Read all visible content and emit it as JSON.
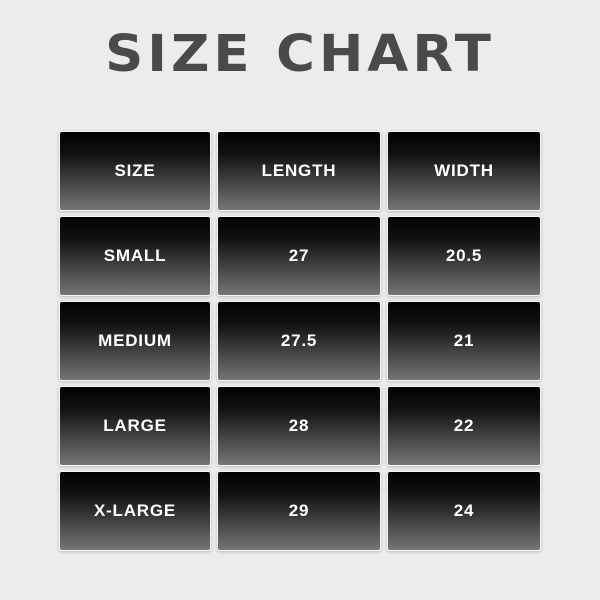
{
  "chart_data": {
    "type": "table",
    "title": "SIZE CHART",
    "columns": [
      "SIZE",
      "LENGTH",
      "WIDTH"
    ],
    "rows": [
      [
        "SMALL",
        "27",
        "20.5"
      ],
      [
        "MEDIUM",
        "27.5",
        "21"
      ],
      [
        "LARGE",
        "28",
        "22"
      ],
      [
        "X-LARGE",
        "29",
        "24"
      ]
    ]
  },
  "colors": {
    "page_background": "#ebedec",
    "title_text": "#4a4a4c",
    "cell_gradient_top": "#020202",
    "cell_gradient_bottom": "#757575",
    "cell_border": "#f6f6f6",
    "cell_text": "#ffffff"
  }
}
